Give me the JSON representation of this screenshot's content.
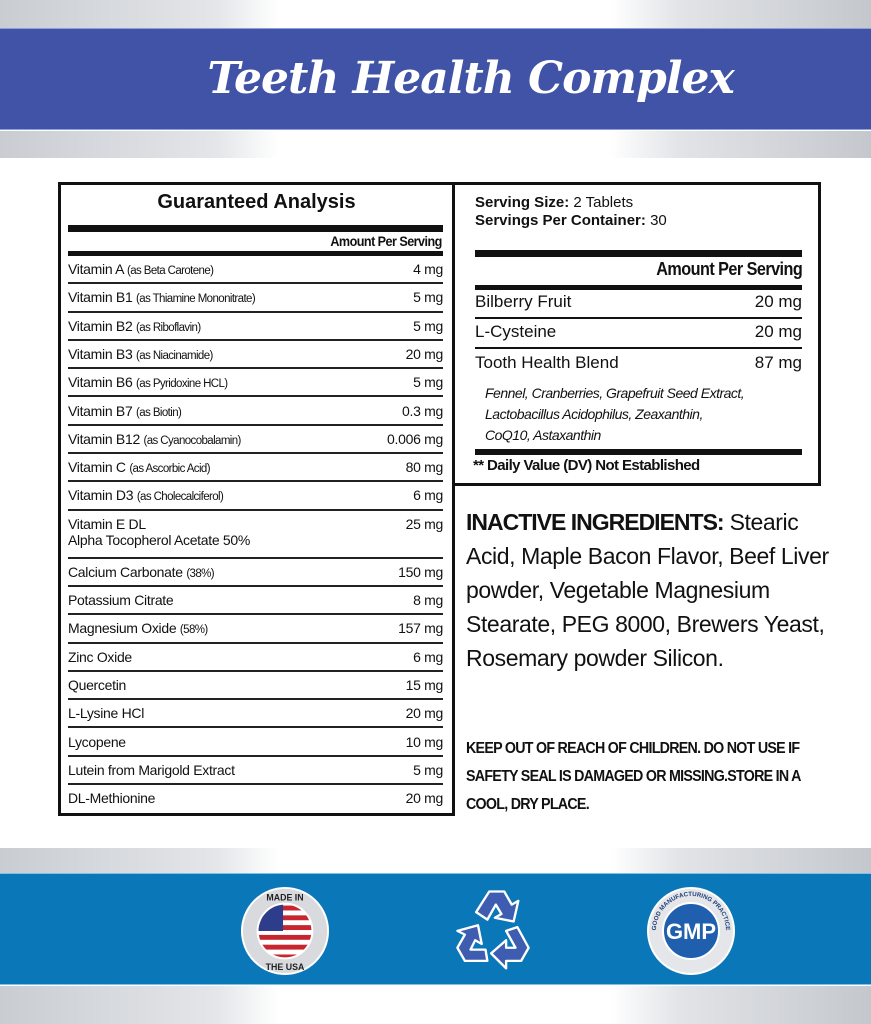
{
  "title": "Teeth Health Complex",
  "guaranteed_analysis": {
    "heading": "Guaranteed Analysis",
    "column_header": "Amount Per Serving",
    "rows": [
      {
        "name": "Vitamin A",
        "detail": "(as Beta Carotene)",
        "amount": "4 mg"
      },
      {
        "name": "Vitamin B1",
        "detail": "(as Thiamine Mononitrate)",
        "amount": "5 mg"
      },
      {
        "name": "Vitamin B2",
        "detail": "(as Riboflavin)",
        "amount": "5 mg"
      },
      {
        "name": "Vitamin B3",
        "detail": "(as Niacinamide)",
        "amount": "20 mg"
      },
      {
        "name": "Vitamin B6",
        "detail": "(as Pyridoxine HCL)",
        "amount": "5 mg"
      },
      {
        "name": "Vitamin B7",
        "detail": "(as Biotin)",
        "amount": "0.3 mg"
      },
      {
        "name": "Vitamin B12",
        "detail": "(as Cyanocobalamin)",
        "amount": "0.006 mg"
      },
      {
        "name": "Vitamin C",
        "detail": "(as Ascorbic Acid)",
        "amount": "80 mg"
      },
      {
        "name": "Vitamin D3",
        "detail": "(as Cholecalciferol)",
        "amount": "6 mg"
      },
      {
        "name": "Vitamin E DL",
        "detail": "Alpha Tocopherol Acetate 50%",
        "amount": "25 mg"
      },
      {
        "name": "Calcium Carbonate",
        "detail": "(38%)",
        "amount": "150 mg"
      },
      {
        "name": "Potassium Citrate",
        "detail": "",
        "amount": "8 mg"
      },
      {
        "name": "Magnesium Oxide",
        "detail": "(58%)",
        "amount": "157 mg"
      },
      {
        "name": "Zinc Oxide",
        "detail": "",
        "amount": "6 mg"
      },
      {
        "name": "Quercetin",
        "detail": "",
        "amount": "15 mg"
      },
      {
        "name": "L-Lysine HCl",
        "detail": "",
        "amount": "20 mg"
      },
      {
        "name": "Lycopene",
        "detail": "",
        "amount": "10 mg"
      },
      {
        "name": "Lutein from Marigold Extract",
        "detail": "",
        "amount": "5 mg"
      },
      {
        "name": "DL-Methionine",
        "detail": "",
        "amount": "20 mg"
      }
    ]
  },
  "supplement_facts": {
    "serving_size_label": "Serving Size:",
    "serving_size": "2 Tablets",
    "servings_label": "Servings Per Container:",
    "servings": "30",
    "column_header": "Amount Per Serving",
    "rows": [
      {
        "name": "Bilberry Fruit",
        "amount": "20 mg"
      },
      {
        "name": "L-Cysteine",
        "amount": "20 mg"
      },
      {
        "name": "Tooth Health Blend",
        "amount": "87 mg"
      }
    ],
    "blend_lines": [
      "Fennel, Cranberries, Grapefruit Seed Extract,",
      "Lactobacillus Acidophilus, Zeaxanthin,",
      "CoQ10, Astaxanthin"
    ],
    "footnote": "** Daily Value (DV) Not Established"
  },
  "inactive": {
    "label": "INACTIVE INGREDIENTS:",
    "text": " Stearic Acid, Maple Bacon Flavor, Beef Liver powder, Vegetable Magnesium Stearate, PEG 8000, Brewers Yeast, Rosemary powder Silicon."
  },
  "warning": "KEEP OUT OF REACH OF CHILDREN. DO NOT USE IF SAFETY SEAL IS DAMAGED OR MISSING.STORE IN A COOL, DRY PLACE.",
  "badges": {
    "usa_top": "MADE IN",
    "usa_bottom": "THE USA",
    "gmp": "GMP",
    "gmp_ring": "GOOD MANUFACTURING PRACTICE"
  },
  "colors": {
    "top_band": "#4053a6",
    "bottom_band": "#0a77b8",
    "icon_blue": "#3f5db0"
  }
}
